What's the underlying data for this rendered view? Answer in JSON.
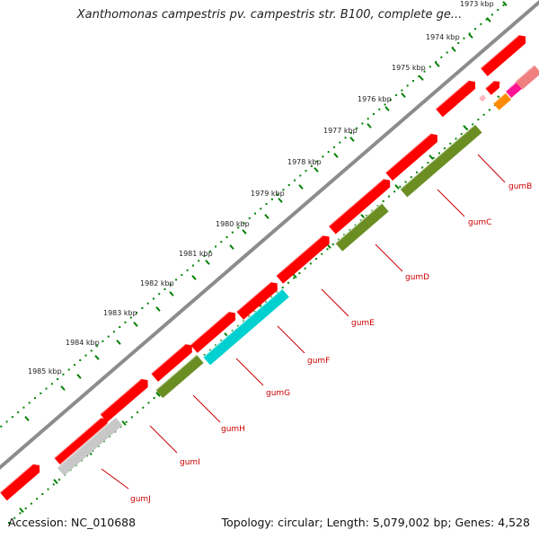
{
  "map": {
    "title": "Xanthomonas campestris pv. campestris str. B100, complete ge...",
    "accession": "Accession: NC_010688",
    "summary": "Topology: circular; Length: 5,079,002 bp; Genes: 4,528",
    "colors": {
      "background": "#ffffff",
      "backbone": "#8c8c8c",
      "gene_red": "#ff0000",
      "gene_olive": "#6b8e23",
      "gene_cyan": "#00d0d0",
      "gene_gray": "#c8c8c8",
      "gene_magenta": "#ff1493",
      "gene_orange": "#ff8c00",
      "gene_pink": "#f08080",
      "tick_green": "#008000",
      "label_red": "#cc0000"
    },
    "kbp_labels": [
      "1973 kbp",
      "1974 kbp",
      "1975 kbp",
      "1976 kbp",
      "1977 kbp",
      "1978 kbp",
      "1979 kbp",
      "1980 kbp",
      "1981 kbp",
      "1982 kbp",
      "1983 kbp",
      "1984 kbp",
      "1985 kbp"
    ],
    "gene_labels": [
      "gumB",
      "gumC",
      "gumD",
      "gumE",
      "gumF",
      "gumG",
      "gumH",
      "gumI",
      "gumJ"
    ]
  }
}
